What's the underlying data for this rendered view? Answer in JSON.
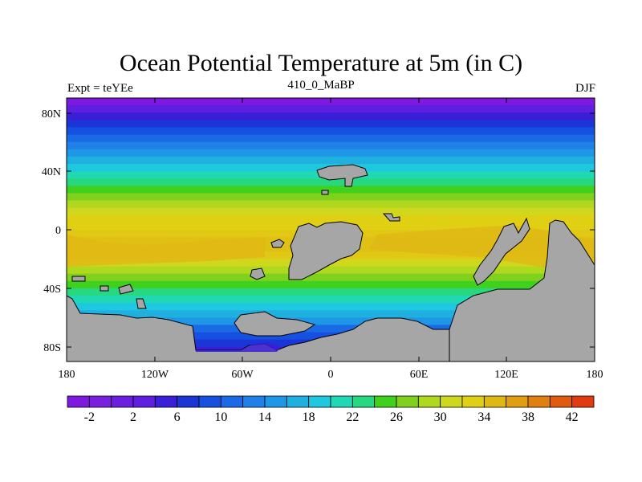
{
  "title": "Ocean Potential Temperature at 5m (in C)",
  "subtitle_left": "Expt = teYEe",
  "subtitle_center": "410_0_MaBP",
  "subtitle_right": "DJF",
  "lat_labels": [
    "80N",
    "40N",
    "0",
    "40S",
    "80S"
  ],
  "lon_labels": [
    "180",
    "120W",
    "60W",
    "0",
    "60E",
    "120E",
    "180"
  ],
  "colorbar": {
    "colors": [
      "#7e1ae0",
      "#7a1ee0",
      "#6c1ee0",
      "#5f1fe0",
      "#3a1fd8",
      "#1c35d6",
      "#1550e0",
      "#1a6ae6",
      "#2080e8",
      "#1e98e6",
      "#20b0e0",
      "#1ec8e0",
      "#20d8b4",
      "#28d880",
      "#40d01e",
      "#80d01e",
      "#b0d81e",
      "#d0d81e",
      "#e0d014",
      "#e0b814",
      "#e09e10",
      "#e08010",
      "#e05a10",
      "#e03c10"
    ],
    "labels": [
      "-2",
      "2",
      "6",
      "10",
      "14",
      "18",
      "22",
      "26",
      "30",
      "34",
      "38",
      "42"
    ]
  },
  "temperature_rows": [
    {
      "lat": 90,
      "color": "#7e1ae0"
    },
    {
      "lat": 85,
      "color": "#5f1fe0"
    },
    {
      "lat": 80,
      "color": "#3a1fd8"
    },
    {
      "lat": 75,
      "color": "#1c35d6"
    },
    {
      "lat": 70,
      "color": "#1550e0"
    },
    {
      "lat": 65,
      "color": "#1a6ae6"
    },
    {
      "lat": 60,
      "color": "#2080e8"
    },
    {
      "lat": 55,
      "color": "#1e98e6"
    },
    {
      "lat": 50,
      "color": "#20b0e0"
    },
    {
      "lat": 45,
      "color": "#1ec8e0"
    },
    {
      "lat": 40,
      "color": "#20d8b4"
    },
    {
      "lat": 35,
      "color": "#28d880"
    },
    {
      "lat": 30,
      "color": "#40d01e"
    },
    {
      "lat": 25,
      "color": "#80d01e"
    },
    {
      "lat": 20,
      "color": "#b0d81e"
    },
    {
      "lat": 15,
      "color": "#d0d81e"
    },
    {
      "lat": 10,
      "color": "#e0d014"
    },
    {
      "lat": 5,
      "color": "#e0d014"
    },
    {
      "lat": 0,
      "color": "#e0c814"
    },
    {
      "lat": -5,
      "color": "#e0c014"
    },
    {
      "lat": -10,
      "color": "#e0c014"
    },
    {
      "lat": -15,
      "color": "#e0c814"
    },
    {
      "lat": -20,
      "color": "#d0d81e"
    },
    {
      "lat": -25,
      "color": "#b0d81e"
    },
    {
      "lat": -30,
      "color": "#80d01e"
    },
    {
      "lat": -35,
      "color": "#40d01e"
    },
    {
      "lat": -40,
      "color": "#28d880"
    },
    {
      "lat": -45,
      "color": "#20d8b4"
    },
    {
      "lat": -50,
      "color": "#1ec8e0"
    },
    {
      "lat": -55,
      "color": "#20b0e0"
    },
    {
      "lat": -60,
      "color": "#1e98e6"
    },
    {
      "lat": -65,
      "color": "#1a6ae6"
    },
    {
      "lat": -70,
      "color": "#1550e0"
    },
    {
      "lat": -75,
      "color": "#1c35d6"
    },
    {
      "lat": -80,
      "color": "#3a1fd8"
    },
    {
      "lat": -85,
      "color": "#3a1fd8"
    }
  ]
}
